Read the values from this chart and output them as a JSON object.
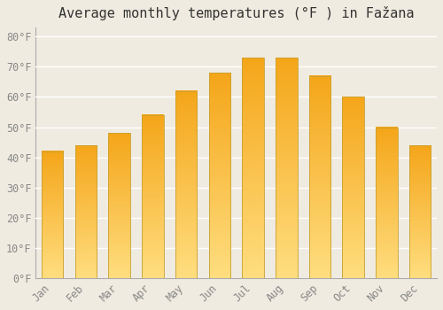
{
  "title": "Average monthly temperatures (°F ) in Fažana",
  "months": [
    "Jan",
    "Feb",
    "Mar",
    "Apr",
    "May",
    "Jun",
    "Jul",
    "Aug",
    "Sep",
    "Oct",
    "Nov",
    "Dec"
  ],
  "values": [
    42,
    44,
    48,
    54,
    62,
    68,
    73,
    73,
    67,
    60,
    50,
    44
  ],
  "bar_color_top": "#F5A800",
  "bar_color_bottom": "#FFDD80",
  "bar_edge_color": "#C8A030",
  "background_color": "#F0EBE0",
  "grid_color": "#FFFFFF",
  "yticks": [
    0,
    10,
    20,
    30,
    40,
    50,
    60,
    70,
    80
  ],
  "ylim": [
    0,
    83
  ],
  "ylabel_suffix": "°F",
  "title_fontsize": 11,
  "tick_fontsize": 8.5
}
